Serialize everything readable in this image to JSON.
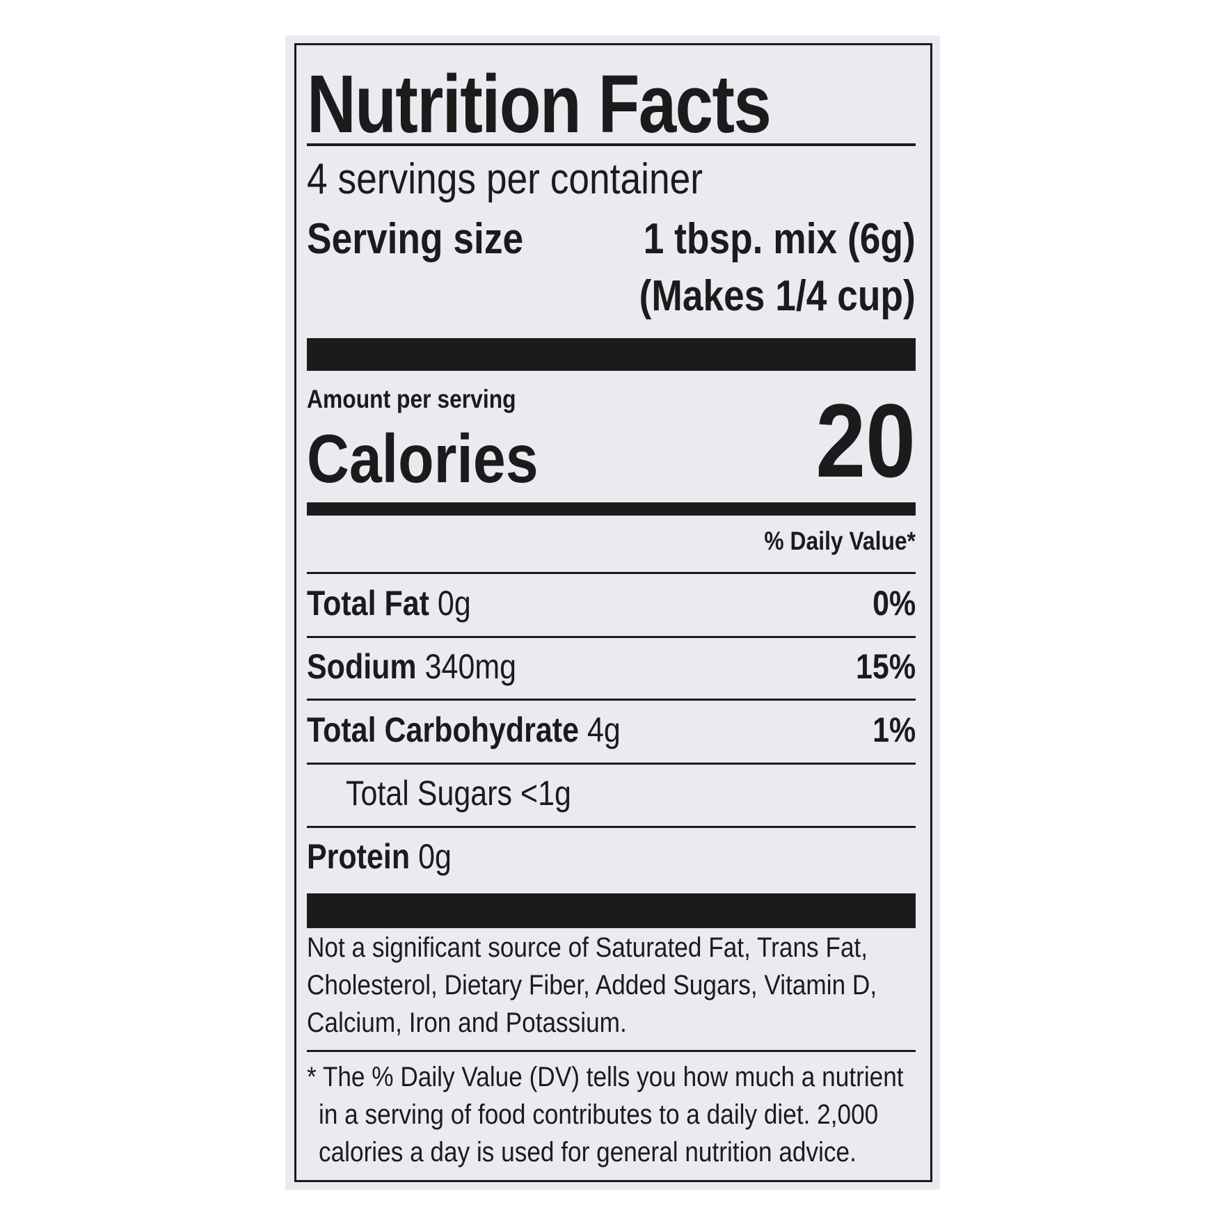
{
  "label": {
    "title": "Nutrition Facts",
    "servings_per_container": "4 servings per container",
    "serving_size_label": "Serving size",
    "serving_size_value": "1 tbsp. mix (6g)",
    "serving_size_note": "(Makes 1/4 cup)",
    "amount_per_serving": "Amount per serving",
    "calories_label": "Calories",
    "calories_value": "20",
    "daily_value_header": "% Daily Value*",
    "nutrients": [
      {
        "name": "Total Fat",
        "amount": "0g",
        "dv": "0%"
      },
      {
        "name": "Sodium",
        "amount": "340mg",
        "dv": "15%"
      },
      {
        "name": "Total Carbohydrate",
        "amount": "4g",
        "dv": "1%"
      },
      {
        "name": "Total Sugars",
        "amount": "<1g",
        "dv": ""
      },
      {
        "name": "Protein",
        "amount": "0g",
        "dv": ""
      }
    ],
    "not_significant_lines": [
      "Not a significant source of Saturated Fat, Trans Fat,",
      "Cholesterol, Dietary Fiber, Added Sugars, Vitamin D,",
      "Calcium, Iron and Potassium."
    ],
    "footnote_lines": [
      "* The % Daily Value (DV) tells you how much a nutrient",
      "in a serving of food contributes to a daily diet. 2,000",
      "calories a day is used for general nutrition advice."
    ]
  },
  "colors": {
    "ink": "#1d1a1b",
    "panel": "#ebeaf1",
    "background": "#ffffff"
  }
}
